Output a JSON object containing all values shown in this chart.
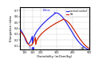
{
  "xlabel": "Osmolality (mOsm/kg)",
  "ylabel": "Elongation index",
  "xlim": [
    75,
    500
  ],
  "ylim": [
    0.05,
    0.75
  ],
  "yticks": [
    0.1,
    0.2,
    0.3,
    0.4,
    0.5,
    0.6,
    0.7
  ],
  "xticks": [
    100,
    150,
    200,
    300,
    400,
    500
  ],
  "xtick_labels": [
    "100",
    "150",
    "200",
    "300",
    "400",
    "500"
  ],
  "normal_color": "#2222ee",
  "hs_color": "#cc2200",
  "legend_labels": [
    "normal control",
    "HS"
  ],
  "background_color": "#ffffff",
  "grid_color": "#cccccc"
}
